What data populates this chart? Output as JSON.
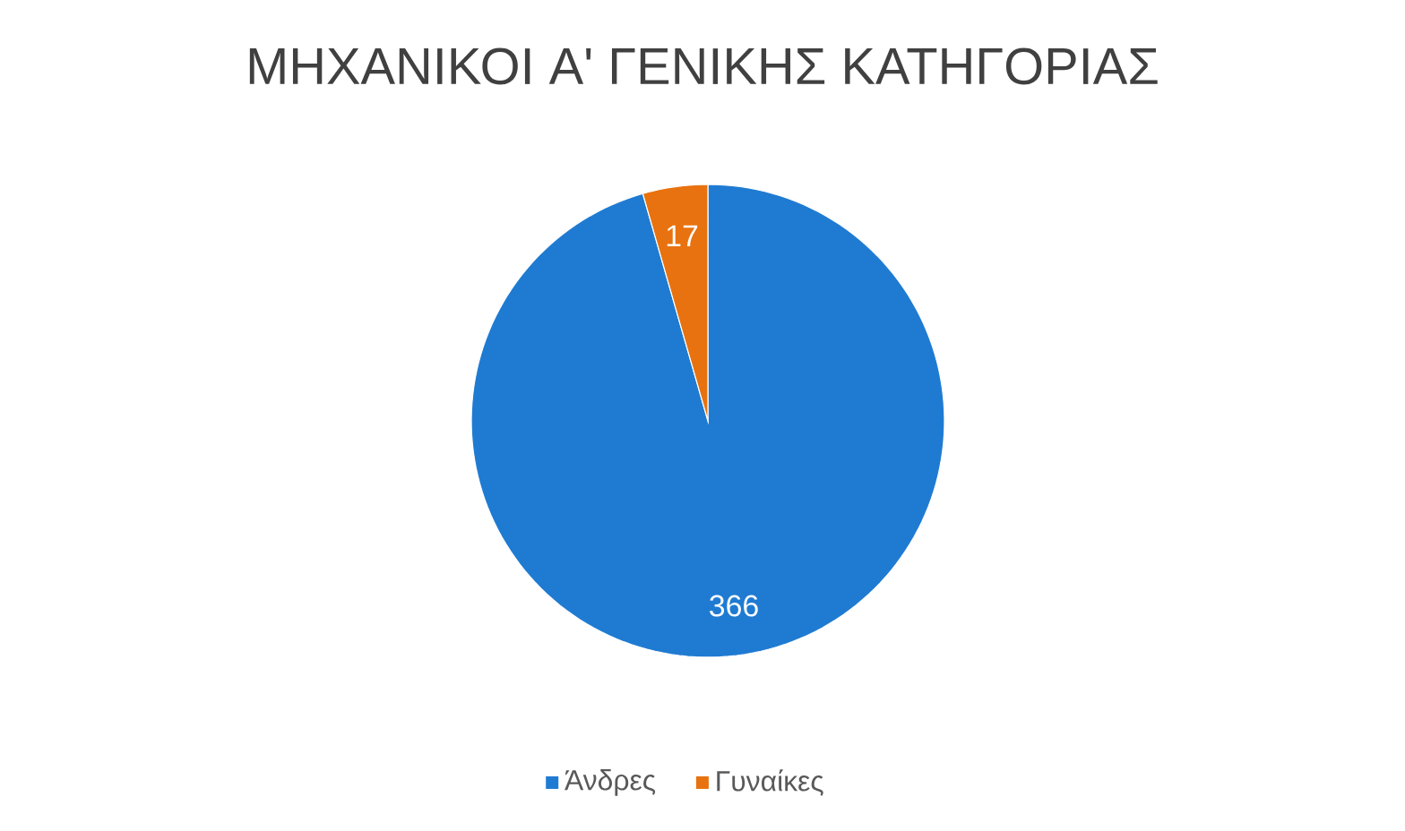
{
  "chart_data": {
    "type": "pie",
    "title": "ΜΗΧΑΝΙΚΟΙ Α' ΓΕΝΙΚΗΣ ΚΑΤΗΓΟΡΙΑΣ",
    "categories": [
      "Άνδρες",
      "Γυναίκες"
    ],
    "values": [
      366,
      17
    ],
    "colors": [
      "#1f7bd2",
      "#e8720f"
    ],
    "data_labels": true,
    "legend": "bottom"
  }
}
